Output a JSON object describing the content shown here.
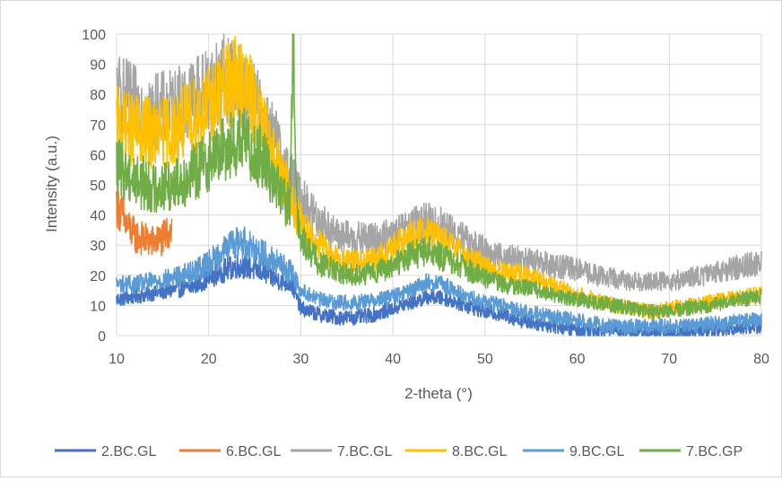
{
  "chart_data": {
    "type": "line",
    "title": "",
    "xlabel": "2-theta (°)",
    "ylabel": "Intensity (a.u.)",
    "xlim": [
      10,
      80
    ],
    "ylim": [
      0,
      100
    ],
    "xticks": [
      10,
      20,
      30,
      40,
      50,
      60,
      70,
      80
    ],
    "yticks": [
      0,
      10,
      20,
      30,
      40,
      50,
      60,
      70,
      80,
      90,
      100
    ],
    "grid": true,
    "legend_position": "bottom",
    "series": [
      {
        "name": "2.BC.GL",
        "color": "#4472C4",
        "x": [
          10,
          12,
          14,
          16,
          18,
          20,
          22,
          23,
          24,
          25,
          26,
          27,
          28,
          29,
          30,
          32,
          34,
          36,
          38,
          40,
          42,
          44,
          46,
          48,
          50,
          52,
          54,
          56,
          58,
          60,
          62,
          64,
          66,
          68,
          70,
          72,
          74,
          76,
          78,
          80
        ],
        "y": [
          12,
          13,
          14,
          15,
          16,
          19,
          22,
          23,
          23,
          22,
          21,
          19,
          18,
          17,
          9,
          7,
          6,
          6,
          7,
          9,
          11,
          13,
          12,
          10,
          8,
          7,
          5,
          4,
          3,
          2,
          2,
          2,
          1,
          1,
          1,
          1,
          2,
          2,
          3,
          3
        ]
      },
      {
        "name": "6.BC.GL",
        "color": "#ED7D31",
        "x": [
          10,
          11,
          12,
          13,
          14,
          15,
          16
        ],
        "y": [
          44,
          37,
          33,
          32,
          31,
          32,
          36
        ]
      },
      {
        "name": "7.BC.GL",
        "color": "#A5A5A5",
        "x": [
          10,
          12,
          14,
          16,
          18,
          20,
          22,
          24,
          26,
          27,
          28,
          29,
          30,
          32,
          34,
          36,
          38,
          40,
          42,
          44,
          46,
          48,
          50,
          52,
          54,
          56,
          58,
          60,
          62,
          64,
          66,
          68,
          70,
          72,
          74,
          76,
          78,
          80
        ],
        "y": [
          80,
          76,
          74,
          75,
          78,
          82,
          86,
          80,
          72,
          66,
          58,
          52,
          45,
          38,
          33,
          32,
          32,
          33,
          36,
          38,
          35,
          31,
          28,
          26,
          25,
          24,
          23,
          22,
          20,
          19,
          18,
          18,
          18,
          19,
          20,
          22,
          23,
          24
        ]
      },
      {
        "name": "8.BC.GL",
        "color": "#FFC000",
        "x": [
          10,
          12,
          14,
          16,
          18,
          20,
          22,
          23,
          24,
          25,
          26,
          27,
          28,
          29,
          30,
          32,
          34,
          36,
          38,
          40,
          42,
          44,
          46,
          48,
          50,
          52,
          54,
          56,
          58,
          60,
          62,
          64,
          66,
          68,
          70,
          72,
          74,
          76,
          78,
          80
        ],
        "y": [
          70,
          68,
          67,
          68,
          72,
          76,
          82,
          85,
          82,
          76,
          68,
          60,
          52,
          45,
          38,
          30,
          25,
          24,
          25,
          29,
          33,
          34,
          30,
          26,
          23,
          21,
          20,
          18,
          16,
          14,
          12,
          10,
          9,
          8,
          9,
          10,
          11,
          12,
          13,
          14
        ]
      },
      {
        "name": "9.BC.GL",
        "color": "#5B9BD5",
        "x": [
          10,
          12,
          14,
          16,
          18,
          20,
          22,
          23,
          24,
          25,
          26,
          27,
          28,
          29,
          30,
          32,
          34,
          36,
          38,
          40,
          42,
          44,
          46,
          48,
          50,
          52,
          54,
          56,
          58,
          60,
          62,
          64,
          66,
          68,
          70,
          72,
          74,
          76,
          78,
          80
        ],
        "y": [
          17,
          17,
          18,
          19,
          21,
          24,
          29,
          31,
          31,
          29,
          27,
          25,
          23,
          21,
          15,
          12,
          11,
          11,
          12,
          13,
          15,
          18,
          16,
          13,
          11,
          10,
          8,
          7,
          6,
          5,
          4,
          3,
          3,
          3,
          3,
          3,
          4,
          4,
          5,
          5
        ]
      },
      {
        "name": "7.BC.GP",
        "color": "#70AD47",
        "x": [
          10,
          12,
          14,
          16,
          18,
          20,
          22,
          24,
          26,
          27,
          28,
          28.8,
          29.2,
          29.6,
          30,
          32,
          34,
          36,
          38,
          40,
          42,
          44,
          46,
          48,
          50,
          52,
          54,
          56,
          58,
          60,
          62,
          64,
          66,
          68,
          70,
          72,
          74,
          76,
          78,
          80
        ],
        "y": [
          56,
          52,
          49,
          50,
          53,
          58,
          63,
          64,
          58,
          52,
          46,
          42,
          100,
          40,
          32,
          24,
          21,
          20,
          21,
          23,
          27,
          28,
          25,
          22,
          19,
          17,
          16,
          15,
          13,
          12,
          11,
          10,
          9,
          8,
          8,
          9,
          10,
          11,
          12,
          13
        ]
      }
    ]
  }
}
